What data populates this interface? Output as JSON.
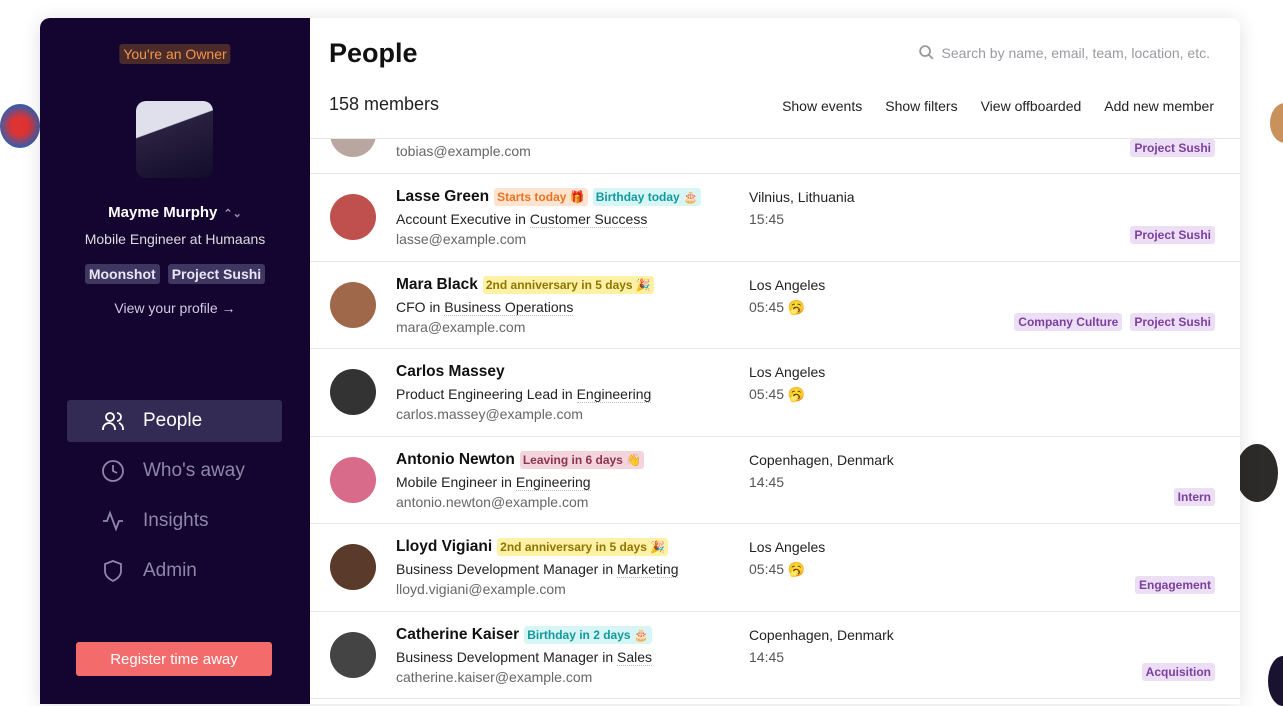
{
  "sidebar": {
    "owner_badge": "You're an Owner",
    "user": {
      "name": "Mayme Murphy",
      "role": "Mobile Engineer at Humaans",
      "tags": [
        "Moonshot",
        "Project Sushi"
      ],
      "view_profile": "View your profile →"
    },
    "nav": [
      {
        "label": "People",
        "icon": "people-icon",
        "active": true
      },
      {
        "label": "Who's away",
        "icon": "clock-icon"
      },
      {
        "label": "Insights",
        "icon": "activity-icon"
      },
      {
        "label": "Admin",
        "icon": "shield-icon"
      }
    ],
    "register_button": "Register time away",
    "accent": "#f46b6b"
  },
  "header": {
    "title": "People",
    "search_placeholder": "Search by name, email, team, location, etc.",
    "member_count": "158 members",
    "actions": [
      "Show events",
      "Show filters",
      "View offboarded",
      "Add new member"
    ]
  },
  "people": [
    {
      "name": "",
      "email": "tobias@example.com",
      "tags": [
        "Project Sushi"
      ],
      "avatar_color": "#b9a6a0",
      "partial": true
    },
    {
      "name": "Lasse Green",
      "badges": [
        {
          "text": "Starts today 🎁",
          "kind": "orange"
        },
        {
          "text": "Birthday today 🎂",
          "kind": "cyan"
        }
      ],
      "title": "Account Executive in",
      "team": "Customer Success",
      "email": "lasse@example.com",
      "location": "Vilnius, Lithuania",
      "time": "15:45",
      "tags": [
        "Project Sushi"
      ],
      "avatar_color": "#c0504d"
    },
    {
      "name": "Mara Black",
      "badges": [
        {
          "text": "2nd anniversary in 5 days 🎉",
          "kind": "yellow"
        }
      ],
      "title": "CFO in",
      "team": "Business Operations",
      "email": "mara@example.com",
      "location": "Los Angeles",
      "time": "05:45 🥱",
      "tags": [
        "Company Culture",
        "Project Sushi"
      ],
      "avatar_color": "#a0684a"
    },
    {
      "name": "Carlos Massey",
      "badges": [],
      "title": "Product Engineering Lead in",
      "team": "Engineering",
      "email": "carlos.massey@example.com",
      "location": "Los Angeles",
      "time": "05:45 🥱",
      "tags": [],
      "avatar_color": "#333333"
    },
    {
      "name": "Antonio Newton",
      "badges": [
        {
          "text": "Leaving in 6 days 👋",
          "kind": "pink"
        }
      ],
      "title": "Mobile Engineer in",
      "team": "Engineering",
      "email": "antonio.newton@example.com",
      "location": "Copenhagen, Denmark",
      "time": "14:45",
      "tags": [
        "Intern"
      ],
      "avatar_color": "#d86a8a"
    },
    {
      "name": "Lloyd Vigiani",
      "badges": [
        {
          "text": "2nd anniversary in 5 days 🎉",
          "kind": "yellow"
        }
      ],
      "title": "Business Development Manager in",
      "team": "Marketing",
      "email": "lloyd.vigiani@example.com",
      "location": "Los Angeles",
      "time": "05:45 🥱",
      "tags": [
        "Engagement"
      ],
      "avatar_color": "#5a3a2a"
    },
    {
      "name": "Catherine Kaiser",
      "badges": [
        {
          "text": "Birthday in 2 days 🎂",
          "kind": "cyan"
        }
      ],
      "title": "Business Development Manager in",
      "team": "Sales",
      "email": "catherine.kaiser@example.com",
      "location": "Copenhagen, Denmark",
      "time": "14:45",
      "tags": [
        "Acquisition"
      ],
      "avatar_color": "#444444"
    }
  ]
}
